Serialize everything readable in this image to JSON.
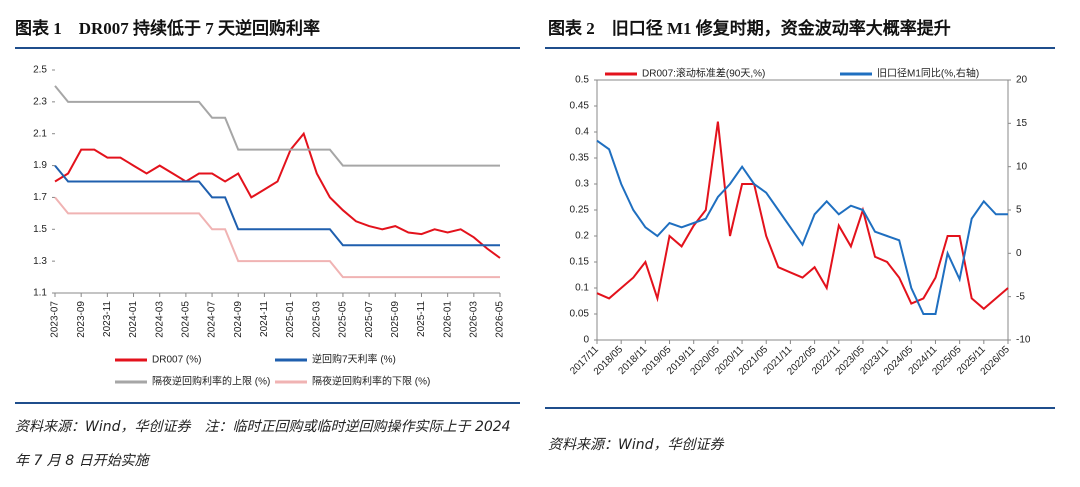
{
  "chart_data": [
    {
      "type": "line",
      "title": "图表 1　DR007 持续低于 7 天逆回购利率",
      "source": "资料来源：Wind，华创证券　注：临时正回购或临时逆回购操作实际上于 2024 年 7 月 8 日开始实施",
      "x": [
        "2023-07",
        null,
        "2023-09",
        null,
        "2023-11",
        null,
        "2024-01",
        null,
        "2024-03",
        null,
        "2024-05",
        null,
        "2024-07",
        null,
        "2024-09",
        null,
        "2024-11",
        null,
        "2025-01",
        null,
        "2025-03",
        null,
        "2025-05",
        null,
        "2025-07",
        null,
        "2025-09",
        null,
        "2025-11",
        null,
        "2026-01",
        null,
        "2026-03",
        null,
        "2026-05"
      ],
      "ylim": [
        1.1,
        2.5
      ],
      "yticks": [
        1.1,
        1.3,
        1.5,
        1.7,
        1.9,
        2.1,
        2.3,
        2.5
      ],
      "series": [
        {
          "name": "DR007 (%)",
          "color": "#e3121c",
          "values": [
            1.8,
            1.85,
            2.0,
            2.0,
            1.95,
            1.95,
            1.9,
            1.85,
            1.9,
            1.85,
            1.8,
            1.85,
            1.85,
            1.8,
            1.85,
            1.7,
            1.75,
            1.8,
            2.0,
            2.1,
            1.85,
            1.7,
            1.62,
            1.55,
            1.52,
            1.5,
            1.52,
            1.48,
            1.47,
            1.5,
            1.48,
            1.5,
            1.45,
            1.38,
            1.32
          ]
        },
        {
          "name": "逆回购7天利率 (%)",
          "color": "#1f5fae",
          "values": [
            1.9,
            1.8,
            1.8,
            1.8,
            1.8,
            1.8,
            1.8,
            1.8,
            1.8,
            1.8,
            1.8,
            1.8,
            1.7,
            1.7,
            1.5,
            1.5,
            1.5,
            1.5,
            1.5,
            1.5,
            1.5,
            1.5,
            1.4,
            1.4,
            1.4,
            1.4,
            1.4,
            1.4,
            1.4,
            1.4,
            1.4,
            1.4,
            1.4,
            1.4,
            1.4
          ]
        },
        {
          "name": "隔夜逆回购利率的上限 (%)",
          "color": "#a6a6a6",
          "values": [
            2.4,
            2.3,
            2.3,
            2.3,
            2.3,
            2.3,
            2.3,
            2.3,
            2.3,
            2.3,
            2.3,
            2.3,
            2.2,
            2.2,
            2.0,
            2.0,
            2.0,
            2.0,
            2.0,
            2.0,
            2.0,
            2.0,
            1.9,
            1.9,
            1.9,
            1.9,
            1.9,
            1.9,
            1.9,
            1.9,
            1.9,
            1.9,
            1.9,
            1.9,
            1.9
          ]
        },
        {
          "name": "隔夜逆回购利率的下限 (%)",
          "color": "#f0b3b3",
          "values": [
            1.7,
            1.6,
            1.6,
            1.6,
            1.6,
            1.6,
            1.6,
            1.6,
            1.6,
            1.6,
            1.6,
            1.6,
            1.5,
            1.5,
            1.3,
            1.3,
            1.3,
            1.3,
            1.3,
            1.3,
            1.3,
            1.3,
            1.2,
            1.2,
            1.2,
            1.2,
            1.2,
            1.2,
            1.2,
            1.2,
            1.2,
            1.2,
            1.2,
            1.2,
            1.2
          ]
        }
      ]
    },
    {
      "type": "line",
      "title": "图表 2　旧口径 M1 修复时期，资金波动率大概率提升",
      "source": "资料来源：Wind，华创证券",
      "x": [
        "2017/11",
        null,
        "2018/05",
        null,
        "2018/11",
        null,
        "2019/05",
        null,
        "2019/11",
        null,
        "2020/05",
        null,
        "2020/11",
        null,
        "2021/05",
        null,
        "2021/11",
        null,
        "2022/05",
        null,
        "2022/11",
        null,
        "2023/05",
        null,
        "2023/11",
        null,
        "2024/05",
        null,
        "2024/11",
        null,
        "2025/05",
        null,
        "2025/11",
        null,
        "2026/05"
      ],
      "ylim": [
        0,
        0.5
      ],
      "yticks": [
        0,
        0.05,
        0.1,
        0.15,
        0.2,
        0.25,
        0.3,
        0.35,
        0.4,
        0.45,
        0.5
      ],
      "y2lim": [
        -10,
        20
      ],
      "y2ticks": [
        -10,
        -5,
        0,
        5,
        10,
        15,
        20
      ],
      "series": [
        {
          "name": "DR007:滚动标准差(90天,%)",
          "color": "#e3121c",
          "values": [
            0.09,
            0.08,
            0.1,
            0.12,
            0.15,
            0.08,
            0.2,
            0.18,
            0.22,
            0.25,
            0.42,
            0.2,
            0.3,
            0.3,
            0.2,
            0.14,
            0.13,
            0.12,
            0.14,
            0.1,
            0.22,
            0.18,
            0.25,
            0.16,
            0.15,
            0.12,
            0.07,
            0.08,
            0.12,
            0.2,
            0.2,
            0.08,
            0.06,
            0.08,
            0.1
          ]
        },
        {
          "name": "旧口径M1同比(%,右轴)",
          "color": "#1f6fc0",
          "axis": "y2",
          "values": [
            13,
            12,
            8,
            5,
            3,
            2,
            3.5,
            3,
            3.5,
            4,
            6.5,
            8,
            10,
            8,
            7,
            5,
            3,
            1,
            4.5,
            6,
            4.5,
            5.5,
            5,
            2.5,
            2,
            1.5,
            -4,
            -7,
            -7,
            0,
            -3,
            4,
            6,
            4.5,
            4.5
          ]
        }
      ]
    }
  ]
}
